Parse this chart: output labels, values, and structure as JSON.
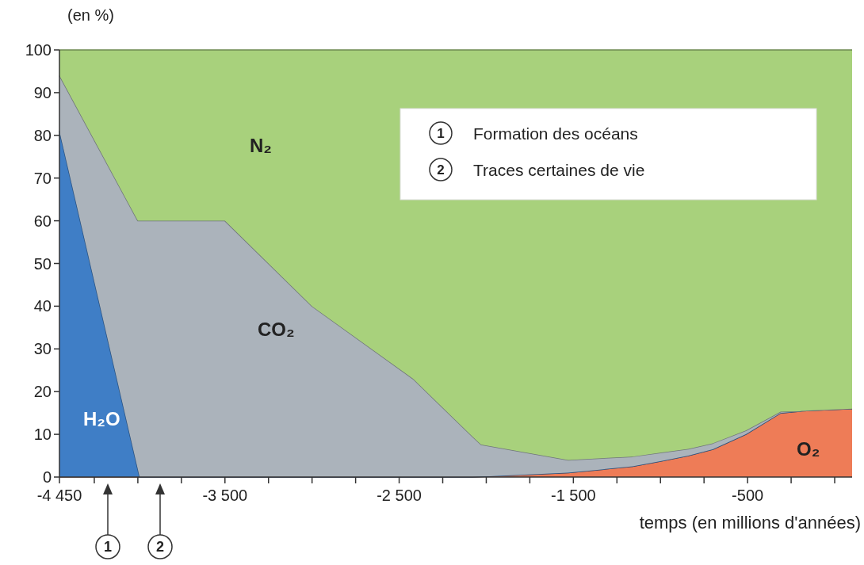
{
  "chart_data": {
    "type": "area",
    "ylabel": "(en %)",
    "xlabel": "temps (en millions d'années)",
    "xlim": [
      -4450,
      100
    ],
    "ylim": [
      0,
      100
    ],
    "xticks": [
      {
        "value": -4450,
        "label": "-4 450"
      },
      {
        "value": -4250,
        "label": null
      },
      {
        "value": -4000,
        "label": null
      },
      {
        "value": -3750,
        "label": null
      },
      {
        "value": -3500,
        "label": "-3 500"
      },
      {
        "value": -3250,
        "label": null
      },
      {
        "value": -3000,
        "label": null
      },
      {
        "value": -2750,
        "label": null
      },
      {
        "value": -2500,
        "label": "-2 500"
      },
      {
        "value": -2250,
        "label": null
      },
      {
        "value": -2000,
        "label": null
      },
      {
        "value": -1750,
        "label": null
      },
      {
        "value": -1500,
        "label": "-1 500"
      },
      {
        "value": -1250,
        "label": null
      },
      {
        "value": -1000,
        "label": null
      },
      {
        "value": -750,
        "label": null
      },
      {
        "value": -500,
        "label": "-500"
      },
      {
        "value": -250,
        "label": null
      },
      {
        "value": 0,
        "label": null
      }
    ],
    "yticks": [
      0,
      10,
      20,
      30,
      40,
      50,
      60,
      70,
      80,
      90,
      100
    ],
    "stacked": true,
    "x": [
      -4450,
      -4000,
      -3990,
      -3500,
      -3000,
      -2420,
      -2080,
      -2030,
      -1530,
      -1160,
      -1000,
      -840,
      -700,
      -510,
      -310,
      -200,
      -190,
      100
    ],
    "series": [
      {
        "name": "O₂",
        "color": "#ee7c57",
        "values": [
          0,
          0,
          0,
          0,
          0,
          0,
          0,
          0.1,
          1,
          2.5,
          3.7,
          5,
          6.5,
          10,
          15,
          15.4,
          15.5,
          16
        ]
      },
      {
        "name": "H₂O",
        "color": "#3f7ec6",
        "values": [
          81,
          1.8,
          0,
          0,
          0,
          0,
          0,
          0,
          0,
          0,
          0,
          0,
          0,
          0,
          0,
          0,
          0,
          0
        ]
      },
      {
        "name": "CO₂",
        "color": "#abb3bb",
        "values": [
          13,
          58.2,
          60,
          60,
          40,
          23,
          9.5,
          7.5,
          3,
          2.3,
          2,
          1.6,
          1.4,
          0.9,
          0.3,
          0,
          0,
          0
        ]
      },
      {
        "name": "N₂",
        "color": "#a8d17c",
        "values": [
          6,
          40,
          40,
          40,
          60,
          77,
          90.5,
          92.4,
          96,
          95.2,
          94.3,
          93.4,
          92.1,
          89.1,
          84.7,
          84.6,
          84.5,
          84
        ]
      }
    ],
    "annotations": [
      "1",
      "2",
      "1",
      "Formation des océans",
      "2",
      "Traces certaines de vie"
    ]
  }
}
